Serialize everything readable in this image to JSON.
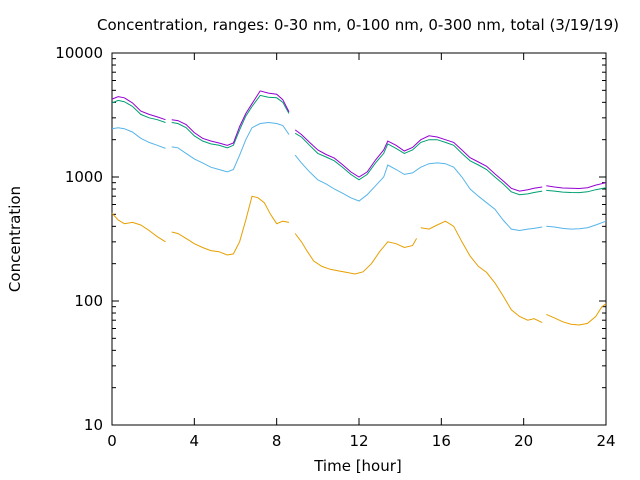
{
  "chart_data": {
    "type": "line",
    "title": "Concentration, ranges: 0-30 nm, 0-100 nm, 0-300 nm, total (3/19/19)",
    "xlabel": "Time [hour]",
    "ylabel": "Concentration",
    "xlim": [
      0,
      24
    ],
    "ylim": [
      10,
      10000
    ],
    "yscale": "log",
    "grid": false,
    "x_ticks": [
      0,
      4,
      8,
      12,
      16,
      20,
      24
    ],
    "x_tick_labels": [
      "0",
      "4",
      "8",
      "12",
      "16",
      "20",
      "24"
    ],
    "y_ticks": [
      10,
      100,
      1000,
      10000
    ],
    "y_tick_labels": [
      "10",
      "100",
      "1000",
      "10000"
    ],
    "series": [
      {
        "color": "#e69f00",
        "segments": [
          [
            [
              0,
              510
            ],
            [
              0.3,
              450
            ],
            [
              0.6,
              420
            ],
            [
              1.0,
              430
            ],
            [
              1.4,
              410
            ],
            [
              1.8,
              370
            ],
            [
              2.2,
              330
            ],
            [
              2.6,
              300
            ]
          ],
          [
            [
              2.9,
              360
            ],
            [
              3.2,
              350
            ],
            [
              3.6,
              320
            ],
            [
              4.0,
              290
            ],
            [
              4.4,
              270
            ],
            [
              4.8,
              255
            ],
            [
              5.2,
              250
            ],
            [
              5.6,
              235
            ],
            [
              5.9,
              240
            ],
            [
              6.2,
              300
            ],
            [
              6.5,
              450
            ],
            [
              6.8,
              700
            ],
            [
              7.1,
              680
            ],
            [
              7.4,
              620
            ],
            [
              7.7,
              500
            ],
            [
              8.0,
              420
            ],
            [
              8.3,
              440
            ],
            [
              8.6,
              430
            ]
          ],
          [
            [
              8.9,
              350
            ],
            [
              9.2,
              300
            ],
            [
              9.5,
              250
            ],
            [
              9.8,
              210
            ],
            [
              10.2,
              190
            ],
            [
              10.6,
              180
            ],
            [
              11.0,
              175
            ],
            [
              11.4,
              170
            ],
            [
              11.8,
              165
            ],
            [
              12.2,
              172
            ],
            [
              12.6,
              200
            ],
            [
              13.0,
              250
            ],
            [
              13.4,
              300
            ],
            [
              13.8,
              290
            ],
            [
              14.2,
              270
            ],
            [
              14.6,
              280
            ],
            [
              14.8,
              320
            ]
          ],
          [
            [
              15.0,
              390
            ],
            [
              15.4,
              380
            ],
            [
              15.8,
              410
            ],
            [
              16.2,
              440
            ],
            [
              16.6,
              400
            ],
            [
              17.0,
              300
            ],
            [
              17.4,
              230
            ],
            [
              17.8,
              190
            ],
            [
              18.2,
              170
            ],
            [
              18.6,
              140
            ],
            [
              19.0,
              110
            ],
            [
              19.4,
              85
            ],
            [
              19.8,
              75
            ],
            [
              20.2,
              70
            ],
            [
              20.5,
              72
            ],
            [
              20.9,
              67
            ]
          ],
          [
            [
              21.1,
              78
            ],
            [
              21.5,
              73
            ],
            [
              21.9,
              68
            ],
            [
              22.3,
              65
            ],
            [
              22.7,
              64
            ],
            [
              23.1,
              66
            ],
            [
              23.5,
              75
            ],
            [
              23.8,
              90
            ],
            [
              24.0,
              95
            ]
          ]
        ]
      },
      {
        "color": "#56b4e9",
        "segments": [
          [
            [
              0,
              2450
            ],
            [
              0.3,
              2500
            ],
            [
              0.6,
              2450
            ],
            [
              1.0,
              2300
            ],
            [
              1.4,
              2050
            ],
            [
              1.8,
              1900
            ],
            [
              2.2,
              1800
            ],
            [
              2.6,
              1700
            ]
          ],
          [
            [
              2.9,
              1750
            ],
            [
              3.2,
              1720
            ],
            [
              3.6,
              1550
            ],
            [
              4.0,
              1400
            ],
            [
              4.4,
              1300
            ],
            [
              4.8,
              1200
            ],
            [
              5.2,
              1150
            ],
            [
              5.6,
              1100
            ],
            [
              5.9,
              1150
            ],
            [
              6.2,
              1500
            ],
            [
              6.5,
              2000
            ],
            [
              6.8,
              2500
            ],
            [
              7.2,
              2700
            ],
            [
              7.6,
              2750
            ],
            [
              8.0,
              2700
            ],
            [
              8.3,
              2600
            ],
            [
              8.6,
              2200
            ]
          ],
          [
            [
              8.9,
              1500
            ],
            [
              9.2,
              1300
            ],
            [
              9.6,
              1100
            ],
            [
              10.0,
              950
            ],
            [
              10.4,
              880
            ],
            [
              10.8,
              800
            ],
            [
              11.2,
              740
            ],
            [
              11.6,
              680
            ],
            [
              12.0,
              640
            ],
            [
              12.4,
              720
            ],
            [
              12.8,
              850
            ],
            [
              13.2,
              1000
            ],
            [
              13.4,
              1250
            ],
            [
              13.8,
              1150
            ],
            [
              14.2,
              1050
            ],
            [
              14.6,
              1080
            ],
            [
              15.0,
              1200
            ],
            [
              15.4,
              1280
            ],
            [
              15.8,
              1300
            ],
            [
              16.2,
              1280
            ],
            [
              16.6,
              1200
            ],
            [
              17.0,
              1000
            ],
            [
              17.4,
              800
            ],
            [
              17.8,
              700
            ],
            [
              18.2,
              620
            ],
            [
              18.6,
              550
            ],
            [
              19.0,
              450
            ],
            [
              19.4,
              380
            ],
            [
              19.8,
              370
            ],
            [
              20.2,
              380
            ],
            [
              20.5,
              385
            ],
            [
              20.9,
              395
            ]
          ],
          [
            [
              21.1,
              400
            ],
            [
              21.5,
              395
            ],
            [
              21.9,
              385
            ],
            [
              22.3,
              380
            ],
            [
              22.7,
              382
            ],
            [
              23.1,
              390
            ],
            [
              23.5,
              410
            ],
            [
              24.0,
              440
            ]
          ]
        ]
      },
      {
        "color": "#009e73",
        "segments": [
          [
            [
              0,
              3950
            ],
            [
              0.3,
              4150
            ],
            [
              0.6,
              4050
            ],
            [
              1.0,
              3700
            ],
            [
              1.4,
              3200
            ],
            [
              1.8,
              3000
            ],
            [
              2.2,
              2900
            ],
            [
              2.6,
              2750
            ]
          ],
          [
            [
              2.9,
              2750
            ],
            [
              3.2,
              2700
            ],
            [
              3.6,
              2500
            ],
            [
              4.0,
              2150
            ],
            [
              4.4,
              1950
            ],
            [
              4.8,
              1850
            ],
            [
              5.2,
              1800
            ],
            [
              5.6,
              1720
            ],
            [
              5.9,
              1800
            ],
            [
              6.2,
              2400
            ],
            [
              6.5,
              3100
            ],
            [
              6.8,
              3700
            ],
            [
              7.2,
              4550
            ],
            [
              7.6,
              4400
            ],
            [
              8.0,
              4350
            ],
            [
              8.3,
              4000
            ],
            [
              8.6,
              3250
            ]
          ],
          [
            [
              8.9,
              2250
            ],
            [
              9.2,
              2100
            ],
            [
              9.6,
              1800
            ],
            [
              10.0,
              1550
            ],
            [
              10.4,
              1450
            ],
            [
              10.8,
              1350
            ],
            [
              11.2,
              1200
            ],
            [
              11.6,
              1050
            ],
            [
              12.0,
              950
            ],
            [
              12.4,
              1050
            ],
            [
              12.8,
              1300
            ],
            [
              13.2,
              1550
            ],
            [
              13.4,
              1850
            ],
            [
              13.8,
              1700
            ],
            [
              14.2,
              1550
            ],
            [
              14.6,
              1650
            ],
            [
              15.0,
              1900
            ],
            [
              15.4,
              2000
            ],
            [
              15.8,
              2000
            ],
            [
              16.2,
              1900
            ],
            [
              16.6,
              1800
            ],
            [
              17.0,
              1550
            ],
            [
              17.4,
              1350
            ],
            [
              17.8,
              1250
            ],
            [
              18.2,
              1150
            ],
            [
              18.6,
              1000
            ],
            [
              19.0,
              880
            ],
            [
              19.4,
              760
            ],
            [
              19.8,
              720
            ],
            [
              20.2,
              730
            ],
            [
              20.5,
              750
            ],
            [
              20.9,
              770
            ]
          ],
          [
            [
              21.1,
              780
            ],
            [
              21.5,
              770
            ],
            [
              21.9,
              755
            ],
            [
              22.3,
              750
            ],
            [
              22.7,
              748
            ],
            [
              23.1,
              760
            ],
            [
              23.5,
              790
            ],
            [
              24.0,
              820
            ]
          ]
        ]
      },
      {
        "color": "#9400d3",
        "segments": [
          [
            [
              0,
              4250
            ],
            [
              0.3,
              4450
            ],
            [
              0.6,
              4350
            ],
            [
              1.0,
              3950
            ],
            [
              1.4,
              3400
            ],
            [
              1.8,
              3200
            ],
            [
              2.2,
              3050
            ],
            [
              2.6,
              2900
            ]
          ],
          [
            [
              2.9,
              2900
            ],
            [
              3.2,
              2850
            ],
            [
              3.6,
              2650
            ],
            [
              4.0,
              2280
            ],
            [
              4.4,
              2050
            ],
            [
              4.8,
              1950
            ],
            [
              5.2,
              1880
            ],
            [
              5.6,
              1800
            ],
            [
              5.9,
              1880
            ],
            [
              6.2,
              2550
            ],
            [
              6.5,
              3250
            ],
            [
              6.8,
              3900
            ],
            [
              7.2,
              4950
            ],
            [
              7.6,
              4750
            ],
            [
              8.0,
              4650
            ],
            [
              8.3,
              4200
            ],
            [
              8.6,
              3350
            ]
          ],
          [
            [
              8.9,
              2400
            ],
            [
              9.2,
              2200
            ],
            [
              9.6,
              1900
            ],
            [
              10.0,
              1650
            ],
            [
              10.4,
              1520
            ],
            [
              10.8,
              1420
            ],
            [
              11.2,
              1260
            ],
            [
              11.6,
              1100
            ],
            [
              12.0,
              1000
            ],
            [
              12.4,
              1100
            ],
            [
              12.8,
              1370
            ],
            [
              13.2,
              1650
            ],
            [
              13.4,
              1950
            ],
            [
              13.8,
              1800
            ],
            [
              14.2,
              1620
            ],
            [
              14.6,
              1730
            ],
            [
              15.0,
              2000
            ],
            [
              15.4,
              2150
            ],
            [
              15.8,
              2100
            ],
            [
              16.2,
              2000
            ],
            [
              16.6,
              1900
            ],
            [
              17.0,
              1650
            ],
            [
              17.4,
              1430
            ],
            [
              17.8,
              1320
            ],
            [
              18.2,
              1220
            ],
            [
              18.6,
              1060
            ],
            [
              19.0,
              930
            ],
            [
              19.4,
              810
            ],
            [
              19.8,
              770
            ],
            [
              20.2,
              790
            ],
            [
              20.5,
              810
            ],
            [
              20.9,
              830
            ]
          ],
          [
            [
              21.1,
              850
            ],
            [
              21.5,
              830
            ],
            [
              21.9,
              815
            ],
            [
              22.3,
              810
            ],
            [
              22.7,
              808
            ],
            [
              23.1,
              820
            ],
            [
              23.5,
              860
            ],
            [
              24.0,
              900
            ]
          ]
        ]
      }
    ]
  }
}
